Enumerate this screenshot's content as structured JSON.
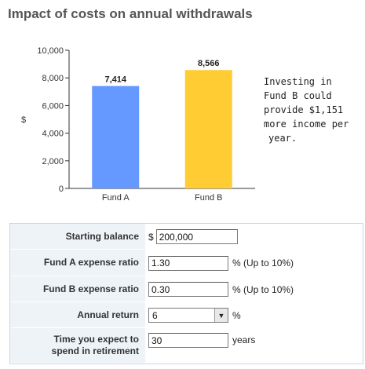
{
  "header": {
    "title": "Impact of costs on annual withdrawals"
  },
  "chart_data": {
    "type": "bar",
    "categories": [
      "Fund A",
      "Fund B"
    ],
    "values": [
      7414,
      8566
    ],
    "value_labels": [
      "7,414",
      "8,566"
    ],
    "ylabel": "$",
    "ylim": [
      0,
      10000
    ],
    "yticks": [
      "0",
      "2,000",
      "4,000",
      "6,000",
      "8,000",
      "10,000"
    ],
    "colors": [
      "#6699ff",
      "#ffcc33"
    ],
    "grid": false
  },
  "note": {
    "lines": [
      "Investing in",
      "Fund B could",
      "provide $1,151",
      "more income per",
      "year."
    ]
  },
  "form": {
    "starting_balance": {
      "label": "Starting balance",
      "prefix": "$",
      "value": "200,000"
    },
    "fund_a_expense": {
      "label": "Fund A expense ratio",
      "value": "1.30",
      "suffix": "%  (Up to 10%)"
    },
    "fund_b_expense": {
      "label": "Fund B expense ratio",
      "value": "0.30",
      "suffix": "%  (Up to 10%)"
    },
    "annual_return": {
      "label": "Annual return",
      "value": "6",
      "suffix": "%"
    },
    "retirement_years": {
      "label_line1": "Time you expect to",
      "label_line2": "spend in retirement",
      "value": "30",
      "suffix": "years"
    }
  }
}
